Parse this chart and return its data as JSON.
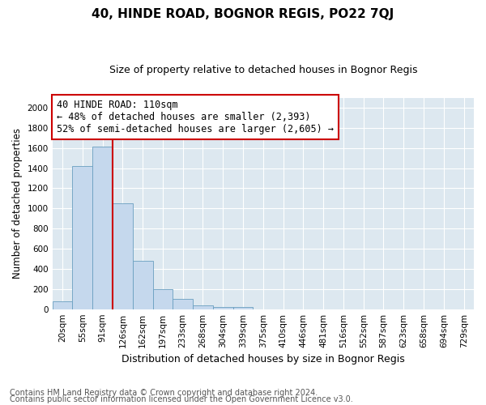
{
  "title": "40, HINDE ROAD, BOGNOR REGIS, PO22 7QJ",
  "subtitle": "Size of property relative to detached houses in Bognor Regis",
  "xlabel": "Distribution of detached houses by size in Bognor Regis",
  "ylabel": "Number of detached properties",
  "footnote1": "Contains HM Land Registry data © Crown copyright and database right 2024.",
  "footnote2": "Contains public sector information licensed under the Open Government Licence v3.0.",
  "bar_labels": [
    "20sqm",
    "55sqm",
    "91sqm",
    "126sqm",
    "162sqm",
    "197sqm",
    "233sqm",
    "268sqm",
    "304sqm",
    "339sqm",
    "375sqm",
    "410sqm",
    "446sqm",
    "481sqm",
    "516sqm",
    "552sqm",
    "587sqm",
    "623sqm",
    "658sqm",
    "694sqm",
    "729sqm"
  ],
  "bar_values": [
    80,
    1420,
    1610,
    1050,
    480,
    200,
    105,
    35,
    25,
    20,
    0,
    0,
    0,
    0,
    0,
    0,
    0,
    0,
    0,
    0,
    0
  ],
  "property_line_x": 3.0,
  "annotation_line1": "40 HINDE ROAD: 110sqm",
  "annotation_line2": "← 48% of detached houses are smaller (2,393)",
  "annotation_line3": "52% of semi-detached houses are larger (2,605) →",
  "red_line_color": "#cc0000",
  "bar_color": "#c5d8ed",
  "bar_edge_color": "#6a9fc0",
  "annotation_box_facecolor": "#ffffff",
  "annotation_box_edgecolor": "#cc0000",
  "plot_bg_color": "#dde8f0",
  "figure_bg_color": "#ffffff",
  "ylim": [
    0,
    2100
  ],
  "yticks": [
    0,
    200,
    400,
    600,
    800,
    1000,
    1200,
    1400,
    1600,
    1800,
    2000
  ],
  "title_fontsize": 11,
  "subtitle_fontsize": 9,
  "xlabel_fontsize": 9,
  "ylabel_fontsize": 8.5,
  "tick_fontsize": 7.5,
  "annotation_fontsize": 8.5,
  "footnote_fontsize": 7
}
